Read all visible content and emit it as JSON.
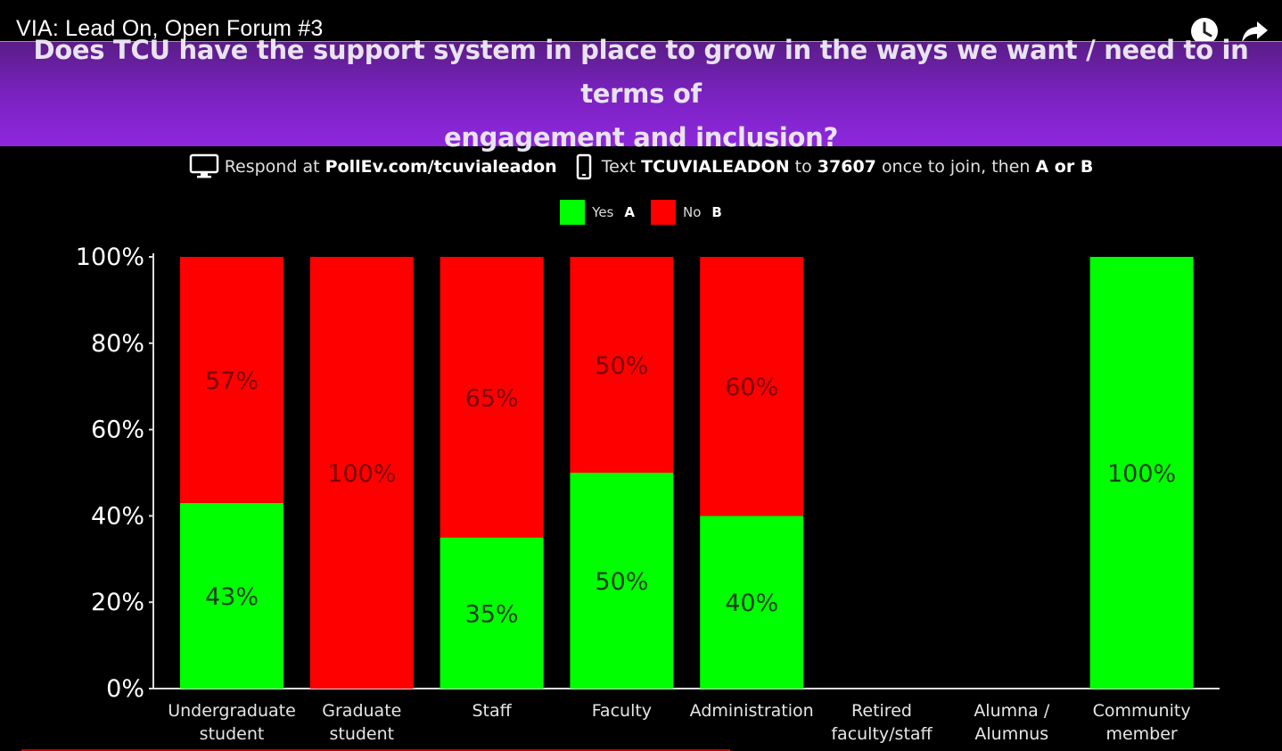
{
  "video": {
    "title": "VIA: Lead On, Open Forum #3",
    "icons": [
      "clock-icon",
      "share-icon"
    ]
  },
  "slide": {
    "question_line1": "Does TCU have the support system in place to grow in the ways we want / need to in terms of",
    "question_line2": "engagement and inclusion?",
    "instructions": {
      "respond_prefix": "Respond at ",
      "respond_url": "PollEv.com/tcuvialeadon",
      "text_prefix": "Text ",
      "text_code": "TCUVIALEADON",
      "text_to": " to ",
      "text_number": "37607",
      "text_suffix": " once to join, then ",
      "text_choices": "A or B"
    }
  },
  "colors": {
    "yes": "#00ff00",
    "no": "#ff0000",
    "banner": "#7a22c0"
  },
  "chart_data": {
    "type": "bar",
    "stacked": true,
    "categories": [
      [
        "Undergraduate",
        "student"
      ],
      [
        "Graduate",
        "student"
      ],
      [
        "Staff"
      ],
      [
        "Faculty"
      ],
      [
        "Administration"
      ],
      [
        "Retired",
        "faculty/staff"
      ],
      [
        "Alumna /",
        "Alumnus"
      ],
      [
        "Community",
        "member"
      ]
    ],
    "series": [
      {
        "name": "Yes",
        "key": "A",
        "color": "#00ff00",
        "values": [
          43,
          0,
          35,
          50,
          40,
          null,
          null,
          100
        ]
      },
      {
        "name": "No",
        "key": "B",
        "color": "#ff0000",
        "values": [
          57,
          100,
          65,
          50,
          60,
          null,
          null,
          0
        ]
      }
    ],
    "value_labels": {
      "Yes": [
        "43%",
        "",
        "35%",
        "50%",
        "40%",
        "",
        "",
        "100%"
      ],
      "No": [
        "57%",
        "100%",
        "65%",
        "50%",
        "60%",
        "",
        "",
        ""
      ]
    },
    "yticks": [
      "0%",
      "20%",
      "40%",
      "60%",
      "80%",
      "100%"
    ],
    "ylim": [
      0,
      100
    ],
    "legend_position": "top-center",
    "grid": false
  }
}
